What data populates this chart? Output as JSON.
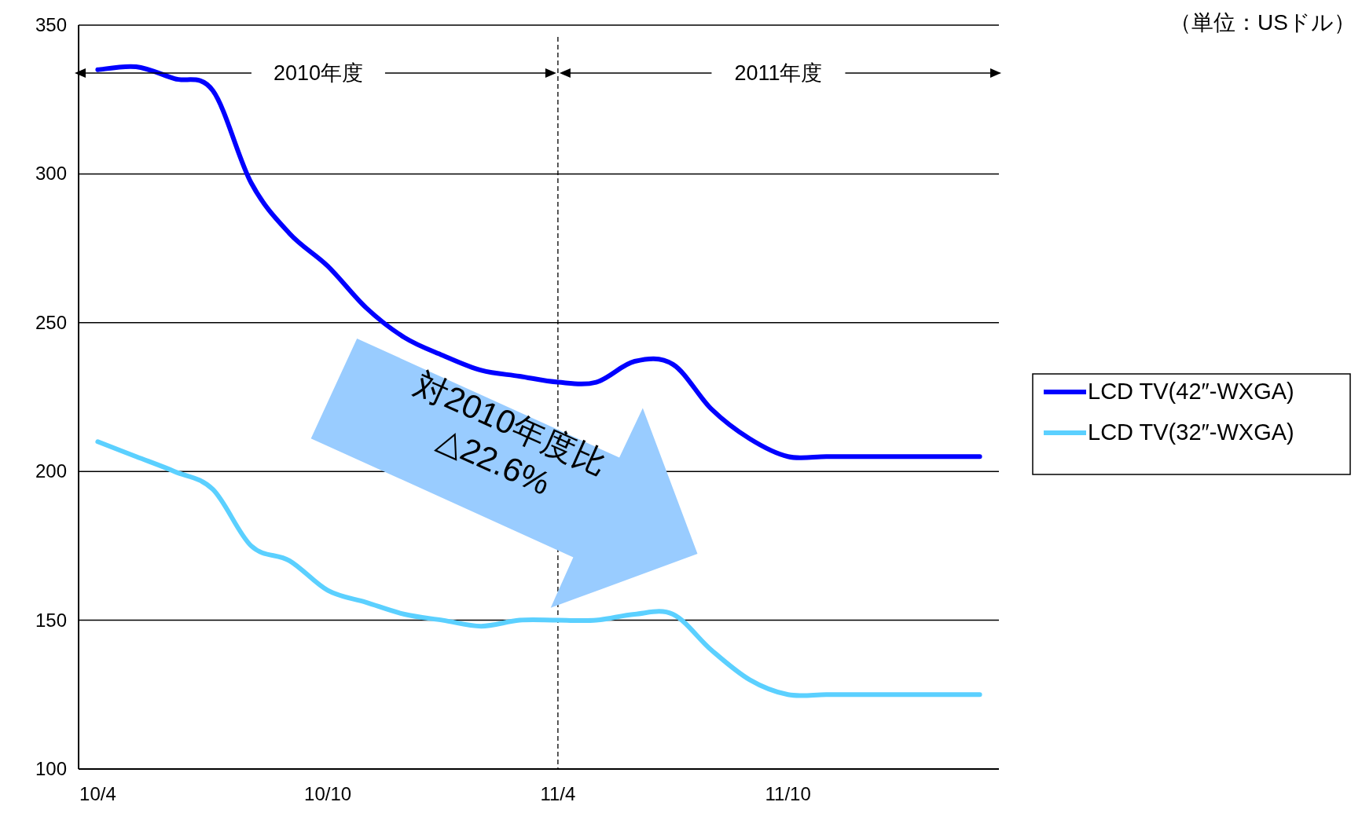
{
  "chart_data": {
    "type": "line",
    "categories": [
      "10/4",
      null,
      null,
      null,
      null,
      null,
      "10/10",
      null,
      null,
      null,
      null,
      null,
      "11/4",
      null,
      null,
      null,
      null,
      null,
      "11/10",
      null,
      null,
      null,
      null,
      null
    ],
    "series": [
      {
        "name": "LCD TV(42″-WXGA)",
        "color": "#0000ff",
        "values": [
          335,
          336,
          332,
          328,
          297,
          280,
          269,
          255,
          245,
          239,
          234,
          232,
          230,
          230,
          237,
          236,
          221,
          211,
          205,
          205,
          205,
          205,
          205,
          205
        ]
      },
      {
        "name": "LCD TV(32″-WXGA)",
        "color": "#5bd0ff",
        "values": [
          210,
          205,
          200,
          194,
          175,
          170,
          160,
          156,
          152,
          150,
          148,
          150,
          150,
          150,
          152,
          152,
          140,
          130,
          125,
          125,
          125,
          125,
          125,
          125
        ]
      }
    ],
    "ylim": [
      100,
      350
    ],
    "yticks": [
      100,
      150,
      200,
      250,
      300,
      350
    ],
    "grid": "y",
    "legend": "right",
    "marker": "none",
    "line_style": "solid",
    "ref_lines": [
      {
        "axis": "x",
        "value": "11/4",
        "line_style": "dashed",
        "color": "#000000"
      }
    ],
    "annotations": [
      "（単位：USドル）",
      "2010年度",
      "2011年度",
      "対2010年度比\n△22.6%"
    ]
  }
}
